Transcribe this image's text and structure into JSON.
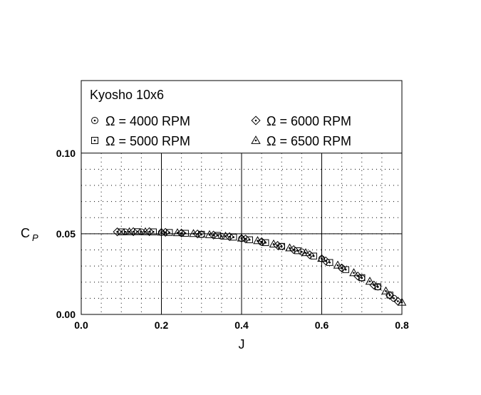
{
  "chart_data": {
    "type": "scatter",
    "title": "Kyosho 10x6",
    "xlabel": "J",
    "ylabel_main": "C",
    "ylabel_sub": "P",
    "xlim": [
      0.0,
      0.8
    ],
    "ylim": [
      0.0,
      0.145
    ],
    "x_ticks": [
      "0.0",
      "0.2",
      "0.4",
      "0.6",
      "0.8"
    ],
    "x_tick_values": [
      0.0,
      0.2,
      0.4,
      0.6,
      0.8
    ],
    "y_ticks": [
      "0.00",
      "0.05",
      "0.10"
    ],
    "y_tick_values": [
      0.0,
      0.05,
      0.1
    ],
    "grid": "major solid, minor dotted",
    "legend_placement": "top, inside plot",
    "series": [
      {
        "name": "Ω = 4000 RPM",
        "marker": "circle-dot",
        "x": [
          0.11,
          0.15,
          0.2,
          0.25,
          0.3,
          0.35,
          0.4,
          0.45,
          0.5,
          0.55,
          0.6,
          0.65,
          0.7,
          0.74,
          0.78
        ],
        "y": [
          0.0512,
          0.0512,
          0.0508,
          0.0503,
          0.0495,
          0.0485,
          0.047,
          0.0448,
          0.0422,
          0.0388,
          0.0345,
          0.0288,
          0.0225,
          0.017,
          0.01
        ]
      },
      {
        "name": "Ω = 5000 RPM",
        "marker": "square-dot",
        "x": [
          0.1,
          0.14,
          0.18,
          0.22,
          0.26,
          0.3,
          0.34,
          0.38,
          0.42,
          0.46,
          0.5,
          0.54,
          0.58,
          0.62,
          0.66,
          0.7,
          0.74,
          0.77
        ],
        "y": [
          0.0512,
          0.0513,
          0.0512,
          0.0508,
          0.0503,
          0.0497,
          0.049,
          0.0479,
          0.0463,
          0.0445,
          0.0422,
          0.0395,
          0.0362,
          0.0322,
          0.0278,
          0.0228,
          0.0172,
          0.012
        ]
      },
      {
        "name": "Ω = 6000 RPM",
        "marker": "diamond-dot",
        "x": [
          0.09,
          0.13,
          0.17,
          0.21,
          0.25,
          0.29,
          0.33,
          0.37,
          0.41,
          0.45,
          0.49,
          0.53,
          0.57,
          0.61,
          0.65,
          0.69,
          0.73,
          0.77,
          0.79
        ],
        "y": [
          0.0512,
          0.0513,
          0.0513,
          0.0509,
          0.0505,
          0.0499,
          0.0492,
          0.0482,
          0.0468,
          0.0451,
          0.0428,
          0.0402,
          0.037,
          0.0332,
          0.0288,
          0.0238,
          0.0182,
          0.0118,
          0.0082
        ]
      },
      {
        "name": "Ω = 6500 RPM",
        "marker": "triangle-dot",
        "x": [
          0.12,
          0.16,
          0.2,
          0.24,
          0.28,
          0.32,
          0.36,
          0.4,
          0.44,
          0.48,
          0.52,
          0.56,
          0.6,
          0.64,
          0.68,
          0.72,
          0.76,
          0.8
        ],
        "y": [
          0.0512,
          0.0512,
          0.051,
          0.0506,
          0.0501,
          0.0494,
          0.0485,
          0.0473,
          0.0457,
          0.0436,
          0.0412,
          0.0382,
          0.0347,
          0.0305,
          0.0258,
          0.0205,
          0.0145,
          0.0075
        ]
      }
    ]
  }
}
